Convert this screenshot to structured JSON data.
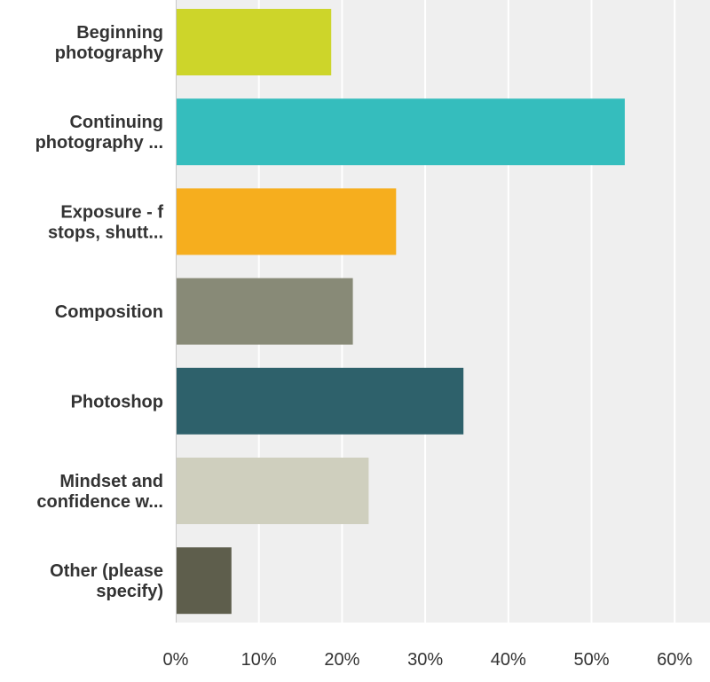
{
  "chart_data": {
    "type": "bar",
    "orientation": "horizontal",
    "categories": [
      [
        "Beginning",
        "photography"
      ],
      [
        "Continuing",
        "photography ..."
      ],
      [
        "Exposure - f",
        "stops, shutt..."
      ],
      [
        "Composition"
      ],
      [
        "Photoshop"
      ],
      [
        "Mindset and",
        "confidence w..."
      ],
      [
        "Other (please",
        "specify)"
      ]
    ],
    "values": [
      18.7,
      54.0,
      26.5,
      21.3,
      34.6,
      23.2,
      6.7
    ],
    "colors": [
      "#cdd52a",
      "#35bdbd",
      "#f6ae1e",
      "#888a77",
      "#2e616b",
      "#cfcfbe",
      "#5e5e4c"
    ],
    "xlim": [
      0,
      60
    ],
    "xticks": [
      "0%",
      "10%",
      "20%",
      "30%",
      "40%",
      "50%",
      "60%"
    ],
    "grid": true,
    "legend": "none",
    "title": "",
    "xlabel": "",
    "ylabel": ""
  }
}
